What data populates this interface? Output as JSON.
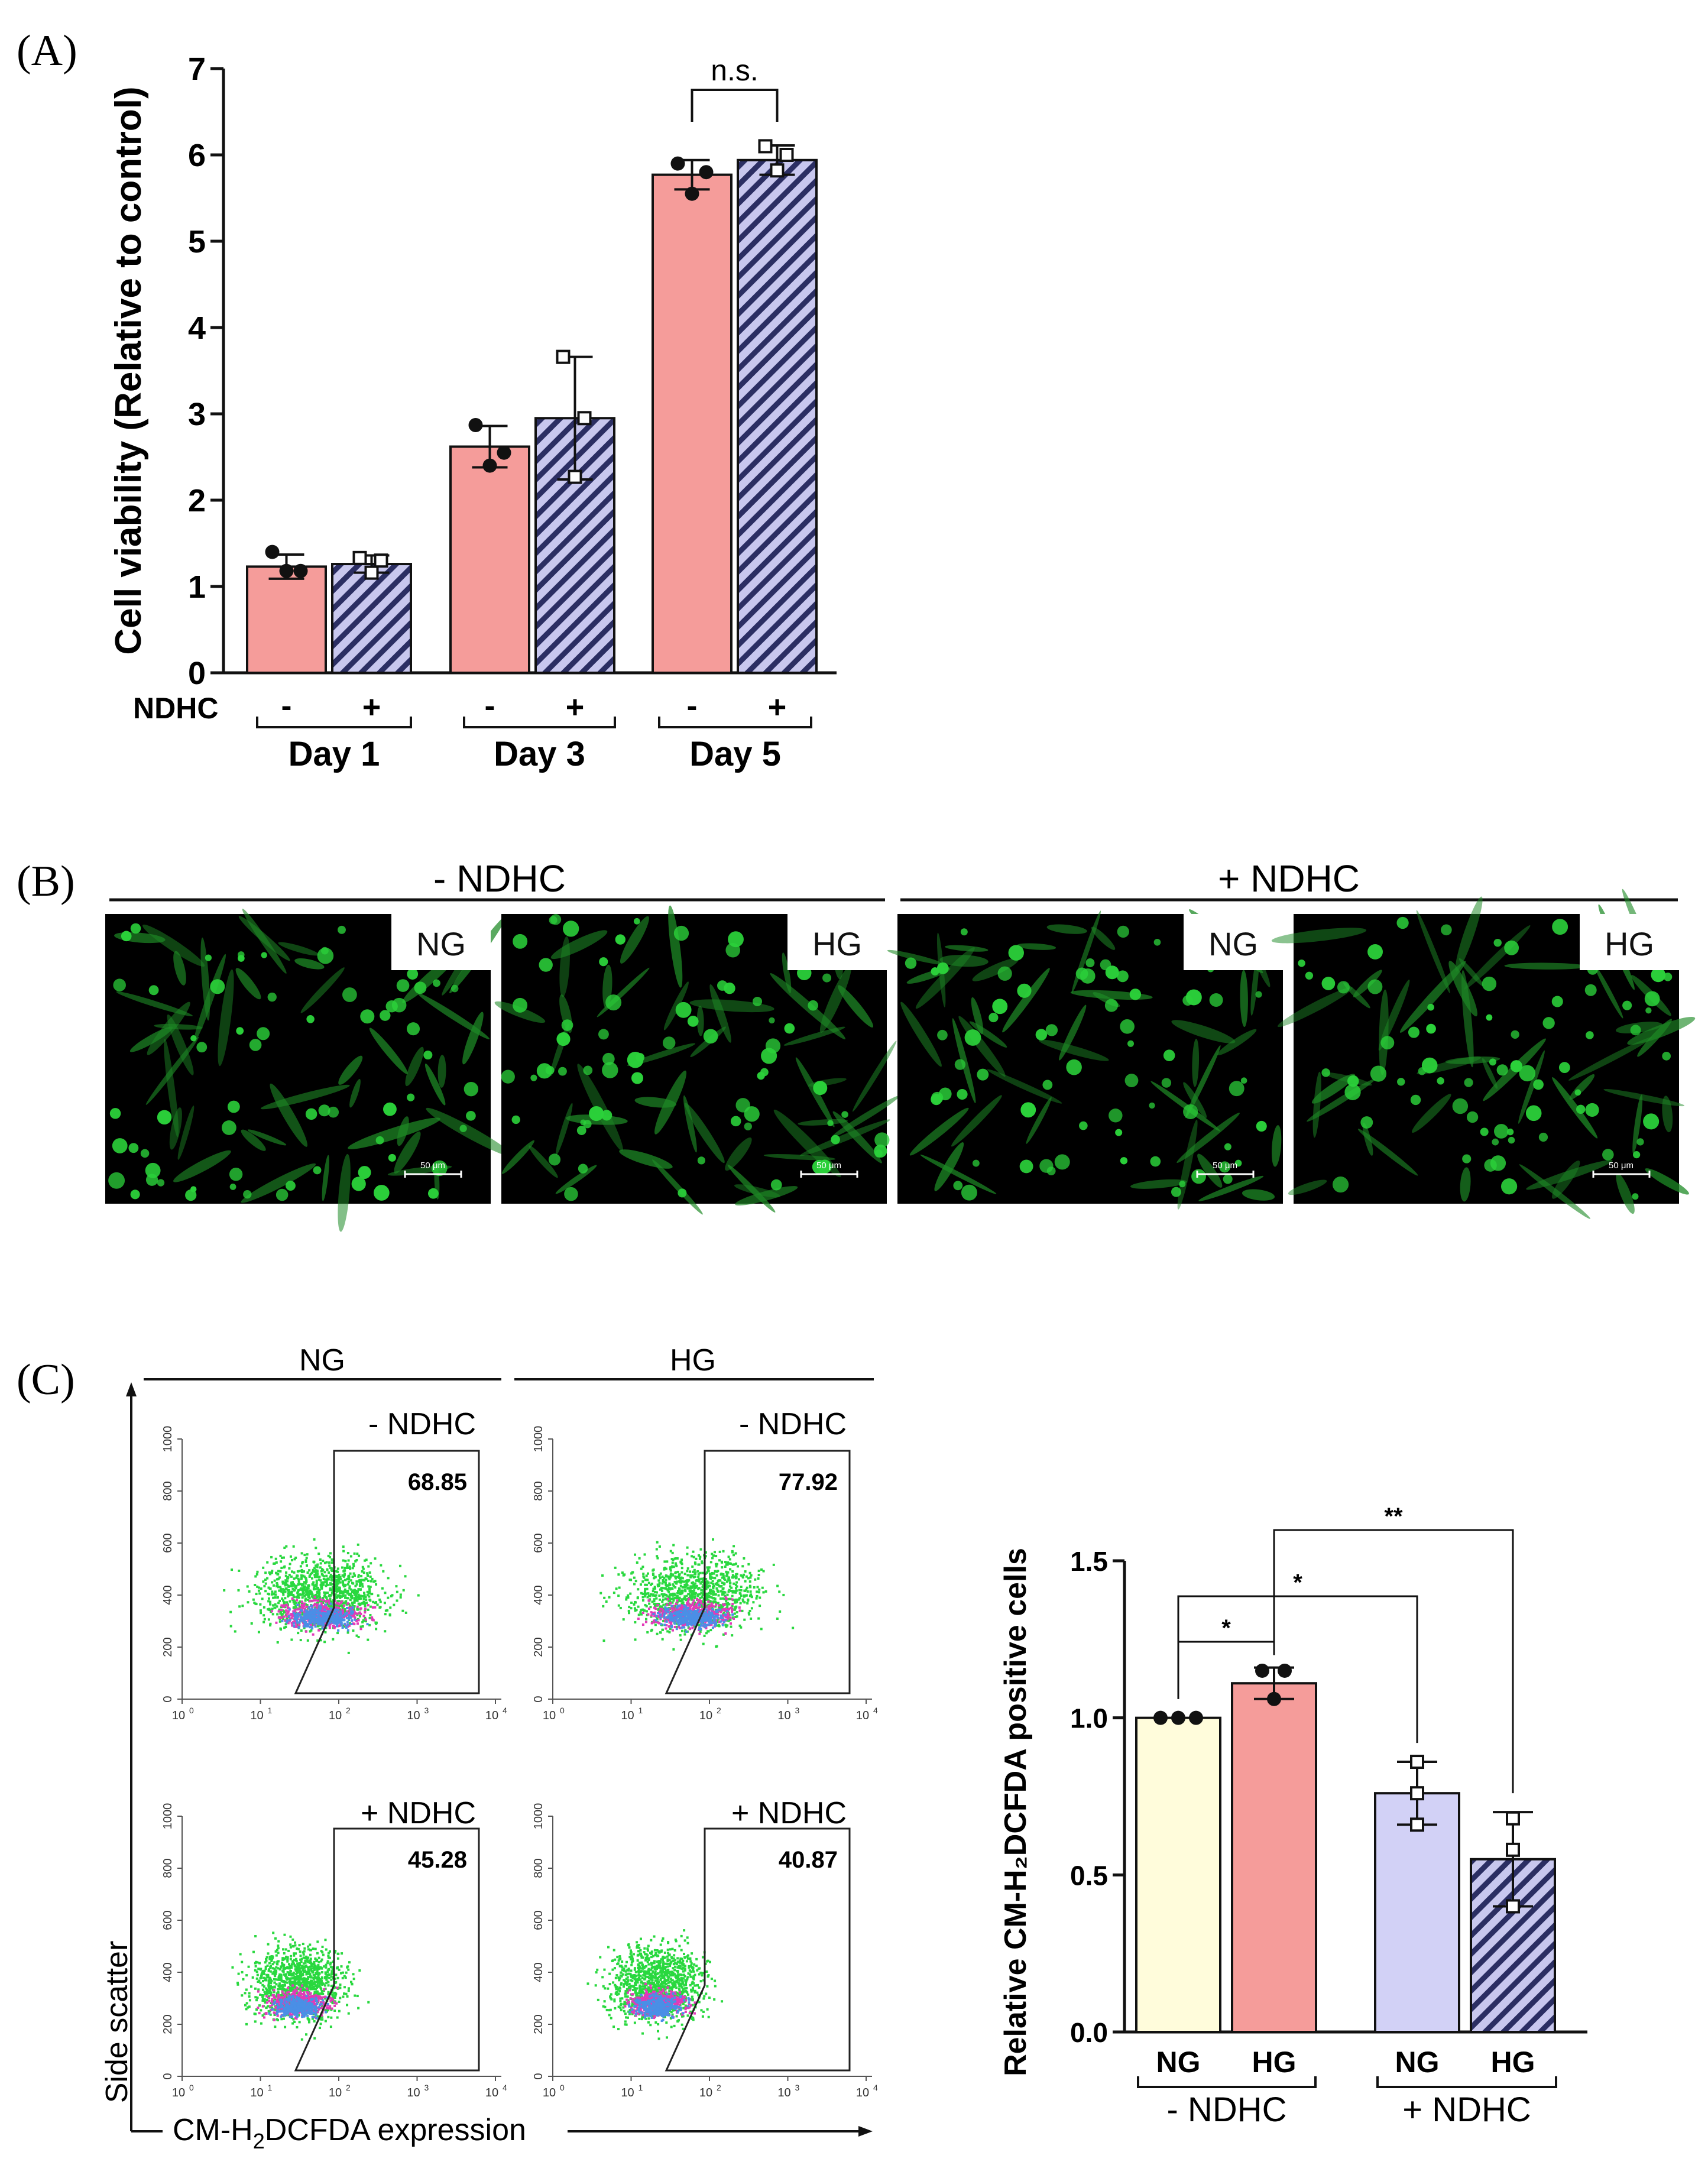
{
  "panels": {
    "a_label": "(A)",
    "b_label": "(B)",
    "c_label": "(C)"
  },
  "colors": {
    "salmon": "#F59C9A",
    "blue_hatch_bg": "#C8C7EE",
    "blue_hatch_line": "#2B2E63",
    "lavender": "#D2D1F6",
    "cream": "#FFFCDB",
    "cell_green": "#2BD13A",
    "dot_green": "#29D83F",
    "dot_magenta": "#E23AB9",
    "dot_blue": "#4A8FE6"
  },
  "chart_data": [
    {
      "type": "bar",
      "panel": "A",
      "ylabel": "Cell viability (Relative to control)",
      "ylim": [
        0,
        7
      ],
      "yticks": [
        "0",
        "1",
        "2",
        "3",
        "4",
        "5",
        "6",
        "7"
      ],
      "row_label": "NDHC",
      "groups": [
        "Day 1",
        "Day 3",
        "Day 5"
      ],
      "ndhc_signs": [
        "-",
        "+"
      ],
      "series": [
        {
          "name": "- NDHC",
          "values": [
            1.23,
            2.62,
            5.77
          ],
          "errors": [
            0.14,
            0.24,
            0.17
          ],
          "points": [
            [
              1.4,
              1.18,
              1.18
            ],
            [
              2.87,
              2.55,
              2.4
            ],
            [
              5.9,
              5.8,
              5.55
            ]
          ]
        },
        {
          "name": "+ NDHC",
          "values": [
            1.26,
            2.95,
            5.94
          ],
          "errors": [
            0.1,
            0.71,
            0.17
          ],
          "points": [
            [
              1.33,
              1.3,
              1.16
            ],
            [
              3.66,
              2.95,
              2.27
            ],
            [
              6.1,
              6.0,
              5.82
            ]
          ]
        }
      ],
      "annotations": [
        {
          "text": "n.s.",
          "group": "Day 5"
        }
      ]
    },
    {
      "type": "bar",
      "panel": "C-right",
      "ylabel": "Relative CM-H2DCFDA positive cells",
      "ylim": [
        0,
        1.5
      ],
      "yticks": [
        "0.0",
        "0.5",
        "1.0",
        "1.5"
      ],
      "categories": [
        "NG",
        "HG",
        "NG",
        "HG"
      ],
      "group_labels": [
        "- NDHC",
        "+ NDHC"
      ],
      "values": [
        1.0,
        1.11,
        0.76,
        0.55
      ],
      "errors": [
        0.0,
        0.05,
        0.1,
        0.15
      ],
      "points": [
        [
          1.0,
          1.0,
          1.0
        ],
        [
          1.15,
          1.15,
          1.06
        ],
        [
          0.86,
          0.76,
          0.66
        ],
        [
          0.68,
          0.58,
          0.4
        ]
      ],
      "significance": [
        {
          "from": 0,
          "to": 1,
          "text": "*"
        },
        {
          "from": 0,
          "to": 2,
          "text": "*"
        },
        {
          "from": 1,
          "to": 3,
          "text": "**"
        }
      ]
    }
  ],
  "microscopy": {
    "headers": [
      "- NDHC",
      "+ NDHC"
    ],
    "tiles": [
      {
        "label": "NG",
        "scale": "50 μm"
      },
      {
        "label": "HG",
        "scale": "50 μm"
      },
      {
        "label": "NG",
        "scale": "50 μm"
      },
      {
        "label": "HG",
        "scale": "50 μm"
      }
    ]
  },
  "flow": {
    "col_headers": [
      "NG",
      "HG"
    ],
    "yaxis_label": "Side scatter",
    "xaxis_label": "CM-H2DCFDA expression",
    "yticks": [
      "0",
      "200",
      "400",
      "600",
      "800",
      "1000"
    ],
    "xticks": [
      "10",
      "10",
      "10",
      "10",
      "10"
    ],
    "xtick_exp": [
      "0",
      "1",
      "2",
      "3",
      "4"
    ],
    "plots": [
      {
        "condition": "- NDHC",
        "percent": "68.85"
      },
      {
        "condition": "- NDHC",
        "percent": "77.92"
      },
      {
        "condition": "+ NDHC",
        "percent": "45.28"
      },
      {
        "condition": "+ NDHC",
        "percent": "40.87"
      }
    ]
  }
}
